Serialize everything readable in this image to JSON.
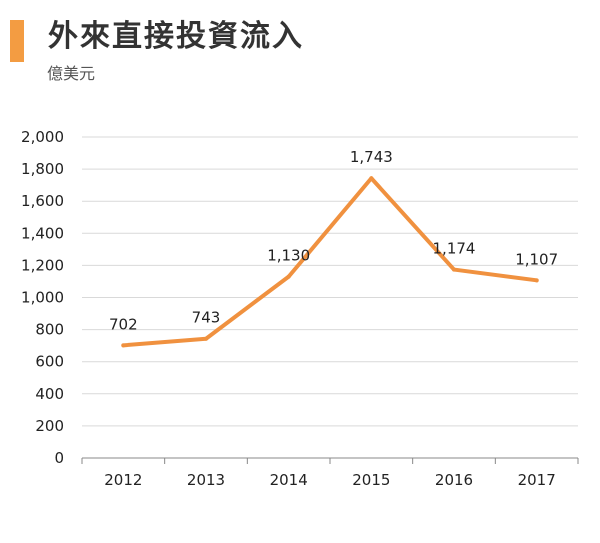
{
  "header": {
    "title": "外來直接投資流入",
    "unit": "億美元"
  },
  "colors": {
    "accent": "#f39c42",
    "line": "#f0913f",
    "grid": "#d9d9d9",
    "axis": "#888888",
    "text": "#222222"
  },
  "chart_data": {
    "type": "line",
    "title": "外來直接投資流入",
    "subtitle": "億美元",
    "categories": [
      "2012",
      "2013",
      "2014",
      "2015",
      "2016",
      "2017"
    ],
    "series": [
      {
        "values": [
          702,
          743,
          1130,
          1743,
          1174,
          1107
        ]
      }
    ],
    "data_labels": [
      "702",
      "743",
      "1,130",
      "1,743",
      "1,174",
      "1,107"
    ],
    "ylim": [
      0,
      2000
    ],
    "yticks": [
      0,
      200,
      400,
      600,
      800,
      1000,
      1200,
      1400,
      1600,
      1800,
      2000
    ],
    "ytick_labels": [
      "0",
      "200",
      "400",
      "600",
      "800",
      "1,000",
      "1,200",
      "1,400",
      "1,600",
      "1,800",
      "2,000"
    ],
    "grid": true,
    "legend": "none"
  }
}
